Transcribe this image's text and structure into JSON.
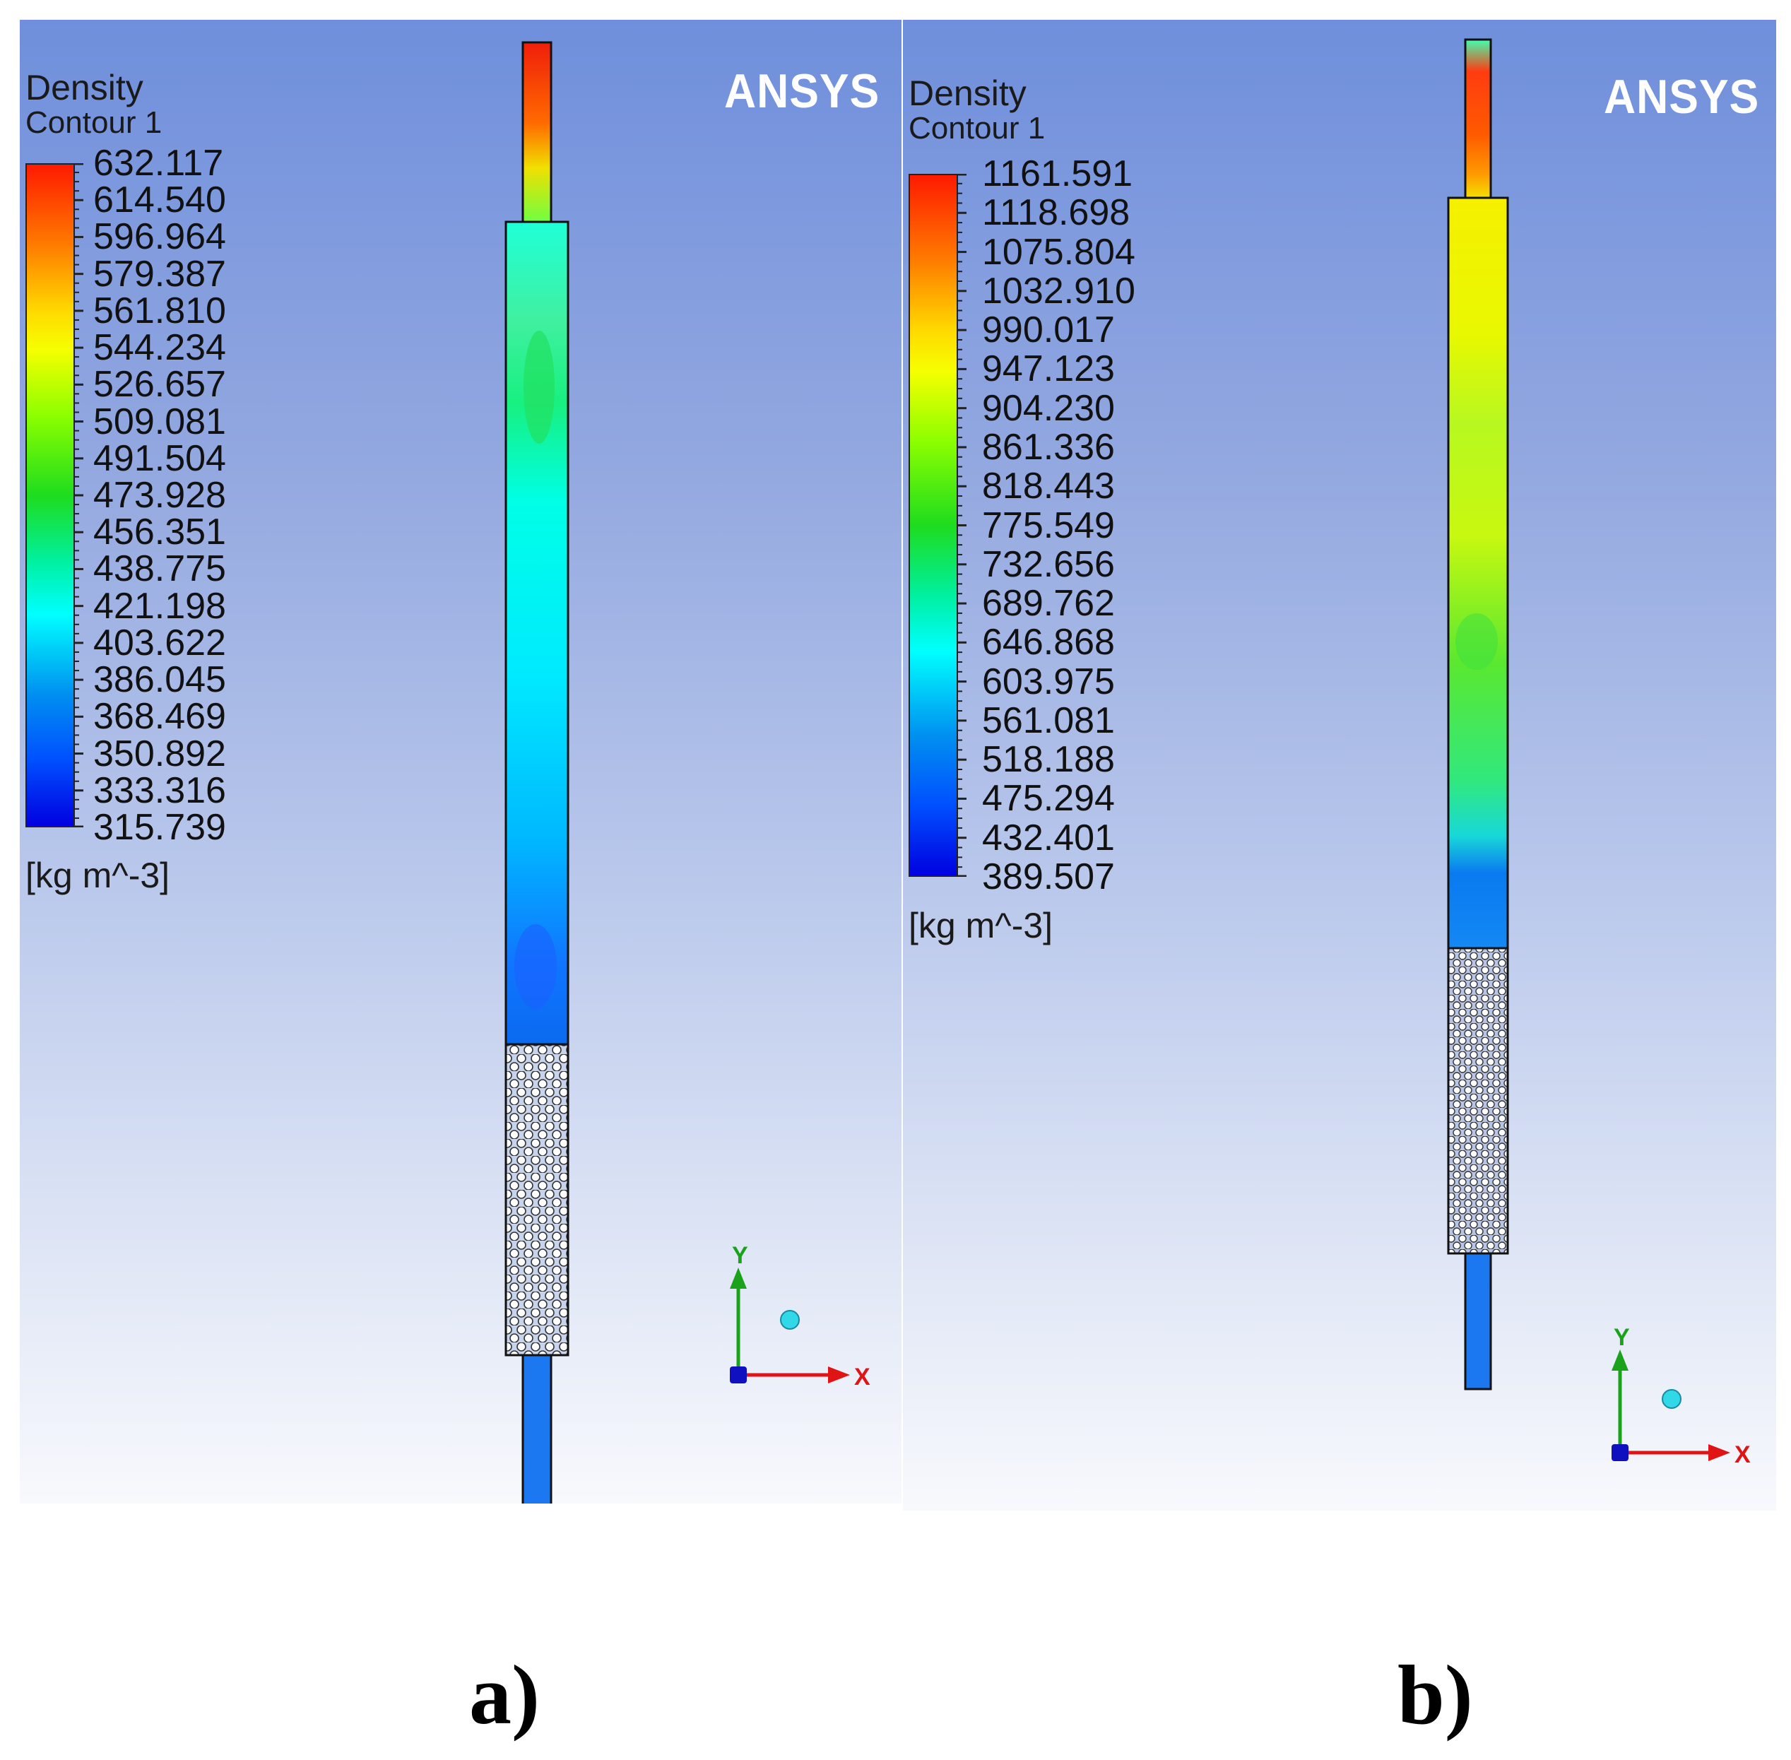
{
  "panels": [
    {
      "id": "a",
      "legend": {
        "title": "Density",
        "subtitle": "Contour 1",
        "unit": "[kg m^-3]",
        "ticks": [
          "632.117",
          "614.540",
          "596.964",
          "579.387",
          "561.810",
          "544.234",
          "526.657",
          "509.081",
          "491.504",
          "473.928",
          "456.351",
          "438.775",
          "421.198",
          "403.622",
          "386.045",
          "368.469",
          "350.892",
          "333.316",
          "315.739"
        ]
      },
      "logo": "ANSYS",
      "axes": {
        "y": "Y",
        "x": "X"
      },
      "caption": "a)"
    },
    {
      "id": "b",
      "legend": {
        "title": "Density",
        "subtitle": "Contour 1",
        "unit": "[kg m^-3]",
        "ticks": [
          "1161.591",
          "1118.698",
          "1075.804",
          "1032.910",
          "990.017",
          "947.123",
          "904.230",
          "861.336",
          "818.443",
          "775.549",
          "732.656",
          "689.762",
          "646.868",
          "603.975",
          "561.081",
          "518.188",
          "475.294",
          "432.401",
          "389.507"
        ]
      },
      "logo": "ANSYS",
      "axes": {
        "y": "Y",
        "x": "X"
      },
      "caption": "b)"
    }
  ],
  "colors": {
    "background_top": "#6f8fdc",
    "background_bottom": "#f8f9fd",
    "axis_y": "#1aa31a",
    "axis_x": "#e01414",
    "origin": "#1010c0",
    "marker": "#30d8e8"
  }
}
